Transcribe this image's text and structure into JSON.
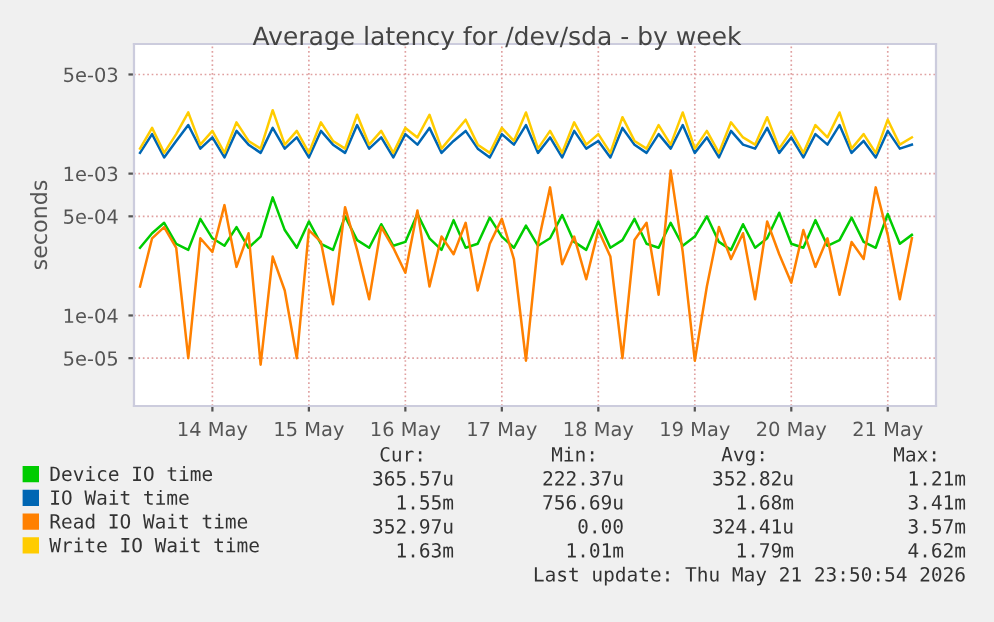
{
  "chart_data": {
    "type": "line",
    "title": "Average latency for /dev/sda - by week",
    "ylabel": "seconds",
    "x": [
      "2026-05-13T18:00",
      "2026-05-13T21:00",
      "2026-05-14T00:00",
      "2026-05-14T03:00",
      "2026-05-14T06:00",
      "2026-05-14T09:00",
      "2026-05-14T12:00",
      "2026-05-14T15:00",
      "2026-05-14T18:00",
      "2026-05-14T21:00",
      "2026-05-15T00:00",
      "2026-05-15T03:00",
      "2026-05-15T06:00",
      "2026-05-15T09:00",
      "2026-05-15T12:00",
      "2026-05-15T15:00",
      "2026-05-15T18:00",
      "2026-05-15T21:00",
      "2026-05-16T00:00",
      "2026-05-16T03:00",
      "2026-05-16T06:00",
      "2026-05-16T09:00",
      "2026-05-16T12:00",
      "2026-05-16T15:00",
      "2026-05-16T18:00",
      "2026-05-16T21:00",
      "2026-05-17T00:00",
      "2026-05-17T03:00",
      "2026-05-17T06:00",
      "2026-05-17T09:00",
      "2026-05-17T12:00",
      "2026-05-17T15:00",
      "2026-05-17T18:00",
      "2026-05-17T21:00",
      "2026-05-18T00:00",
      "2026-05-18T03:00",
      "2026-05-18T06:00",
      "2026-05-18T09:00",
      "2026-05-18T12:00",
      "2026-05-18T15:00",
      "2026-05-18T18:00",
      "2026-05-18T21:00",
      "2026-05-19T00:00",
      "2026-05-19T03:00",
      "2026-05-19T06:00",
      "2026-05-19T09:00",
      "2026-05-19T12:00",
      "2026-05-19T15:00",
      "2026-05-19T18:00",
      "2026-05-19T21:00",
      "2026-05-20T00:00",
      "2026-05-20T03:00",
      "2026-05-20T06:00",
      "2026-05-20T09:00",
      "2026-05-20T12:00",
      "2026-05-20T15:00",
      "2026-05-20T18:00",
      "2026-05-20T21:00",
      "2026-05-21T00:00",
      "2026-05-21T03:00",
      "2026-05-21T06:00",
      "2026-05-21T09:00",
      "2026-05-21T12:00",
      "2026-05-21T15:00",
      "2026-05-21T18:00"
    ],
    "series": [
      {
        "name": "Device IO time",
        "color": "#00cc00",
        "values": [
          0.0003,
          0.00038,
          0.00045,
          0.00032,
          0.00029,
          0.00048,
          0.00035,
          0.00031,
          0.00042,
          0.0003,
          0.00036,
          0.00068,
          0.0004,
          0.0003,
          0.00046,
          0.00032,
          0.00029,
          0.0005,
          0.00034,
          0.0003,
          0.00044,
          0.00031,
          0.00033,
          0.00052,
          0.00035,
          0.00029,
          0.00047,
          0.0003,
          0.00032,
          0.00049,
          0.00036,
          0.0003,
          0.00043,
          0.00031,
          0.00035,
          0.00051,
          0.00033,
          0.00029,
          0.00046,
          0.0003,
          0.00034,
          0.00048,
          0.00032,
          0.0003,
          0.00045,
          0.00031,
          0.00036,
          0.0005,
          0.00033,
          0.00029,
          0.00044,
          0.0003,
          0.00035,
          0.00053,
          0.00032,
          0.0003,
          0.00047,
          0.00031,
          0.00034,
          0.00049,
          0.00033,
          0.0003,
          0.00052,
          0.00032,
          0.00037
        ]
      },
      {
        "name": "IO Wait time",
        "color": "#0066b3",
        "values": [
          0.0014,
          0.0019,
          0.0013,
          0.0017,
          0.0022,
          0.0015,
          0.0018,
          0.0013,
          0.002,
          0.0016,
          0.0014,
          0.0021,
          0.0015,
          0.0018,
          0.0013,
          0.002,
          0.0016,
          0.0014,
          0.0022,
          0.0015,
          0.0018,
          0.0013,
          0.0019,
          0.0016,
          0.0021,
          0.0014,
          0.0017,
          0.002,
          0.0015,
          0.0013,
          0.0019,
          0.0016,
          0.0022,
          0.0014,
          0.0018,
          0.0013,
          0.002,
          0.0015,
          0.0017,
          0.0013,
          0.0021,
          0.0016,
          0.0014,
          0.0019,
          0.0015,
          0.0022,
          0.0014,
          0.0018,
          0.0013,
          0.002,
          0.0016,
          0.0015,
          0.0021,
          0.0014,
          0.0018,
          0.0013,
          0.0019,
          0.0016,
          0.0022,
          0.0014,
          0.0017,
          0.0013,
          0.002,
          0.0015,
          0.0016
        ]
      },
      {
        "name": "Read IO Wait time",
        "color": "#ff8000",
        "values": [
          0.00016,
          0.00035,
          0.00042,
          0.0003,
          5e-05,
          0.00035,
          0.00028,
          0.0006,
          0.00022,
          0.00038,
          4.5e-05,
          0.00026,
          0.00015,
          5e-05,
          0.0004,
          0.00033,
          0.00012,
          0.00058,
          0.00029,
          0.00013,
          0.00042,
          0.0003,
          0.0002,
          0.00055,
          0.00016,
          0.00036,
          0.00027,
          0.00045,
          0.00015,
          0.00032,
          0.00048,
          0.00025,
          4.8e-05,
          0.00032,
          0.0008,
          0.00023,
          0.00036,
          0.00018,
          0.0004,
          0.00026,
          5e-05,
          0.00034,
          0.00045,
          0.00014,
          0.00105,
          0.00028,
          4.8e-05,
          0.00016,
          0.00042,
          0.00025,
          0.00038,
          0.00013,
          0.00046,
          0.00027,
          0.00017,
          0.0004,
          0.00022,
          0.00035,
          0.00014,
          0.00033,
          0.00025,
          0.0008,
          0.00037,
          0.00013,
          0.00035
        ]
      },
      {
        "name": "Write IO Wait time",
        "color": "#ffcc00",
        "values": [
          0.0015,
          0.0021,
          0.0014,
          0.0019,
          0.0027,
          0.0016,
          0.002,
          0.0014,
          0.0023,
          0.0017,
          0.0015,
          0.0028,
          0.0016,
          0.002,
          0.0014,
          0.0023,
          0.0017,
          0.0015,
          0.0026,
          0.0016,
          0.002,
          0.0014,
          0.0021,
          0.0018,
          0.0026,
          0.0015,
          0.0019,
          0.0024,
          0.0016,
          0.0014,
          0.0021,
          0.0017,
          0.0027,
          0.0015,
          0.002,
          0.0014,
          0.0023,
          0.0016,
          0.0019,
          0.0014,
          0.0025,
          0.0017,
          0.0015,
          0.0022,
          0.0016,
          0.0027,
          0.0015,
          0.002,
          0.0014,
          0.0023,
          0.0018,
          0.0016,
          0.0025,
          0.0015,
          0.002,
          0.0014,
          0.0022,
          0.0018,
          0.0027,
          0.0015,
          0.0019,
          0.0014,
          0.0024,
          0.0016,
          0.0018
        ]
      }
    ],
    "log": "y",
    "xlim": [
      "2026-05-13T16:30",
      "2026-05-22T00:00"
    ],
    "xticks": [
      {
        "value": "2026-05-14T12:00",
        "label": "14 May"
      },
      {
        "value": "2026-05-15T12:00",
        "label": "15 May"
      },
      {
        "value": "2026-05-16T12:00",
        "label": "16 May"
      },
      {
        "value": "2026-05-17T12:00",
        "label": "17 May"
      },
      {
        "value": "2026-05-18T12:00",
        "label": "18 May"
      },
      {
        "value": "2026-05-19T12:00",
        "label": "19 May"
      },
      {
        "value": "2026-05-20T12:00",
        "label": "20 May"
      },
      {
        "value": "2026-05-21T12:00",
        "label": "21 May"
      }
    ],
    "ylim": [
      2.3e-05,
      0.0082
    ],
    "yticks": [
      {
        "value": 5e-05,
        "label": "5e-05"
      },
      {
        "value": 0.0001,
        "label": "1e-04"
      },
      {
        "value": 0.0005,
        "label": "5e-04"
      },
      {
        "value": 0.001,
        "label": "1e-03"
      },
      {
        "value": 0.005,
        "label": "5e-03"
      }
    ],
    "grid": true,
    "legend": "bottom",
    "line_style": "solid",
    "marker": "none",
    "annotations": [
      "Cur:",
      "Min:",
      "Avg:",
      "Max:",
      "365.57u",
      "222.37u",
      "352.82u",
      "1.21m",
      "1.55m",
      "756.69u",
      "1.68m",
      "3.41m",
      "352.97u",
      "0.00",
      "324.41u",
      "3.57m",
      "1.63m",
      "1.01m",
      "1.79m",
      "4.62m",
      "Last update: Thu May 21 23:50:54 2026"
    ]
  }
}
